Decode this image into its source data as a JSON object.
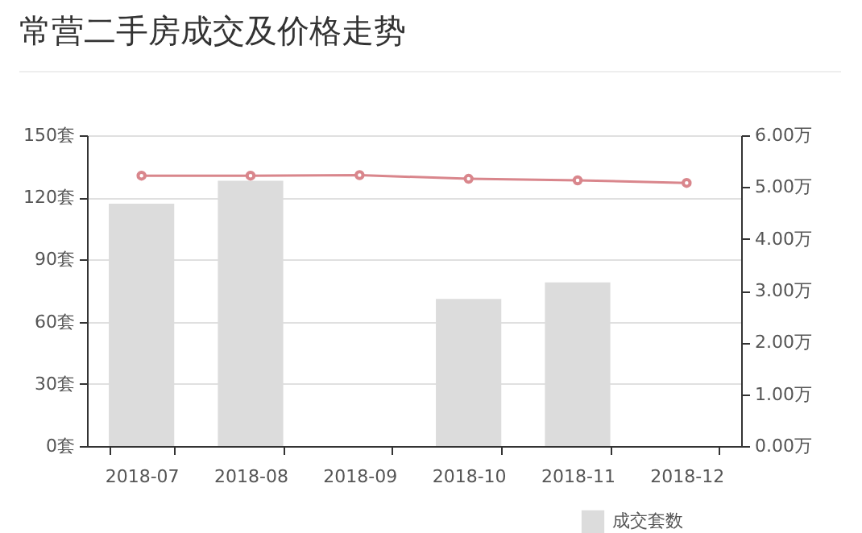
{
  "chart_data": {
    "type": "bar",
    "title": "常营二手房成交及价格走势",
    "categories": [
      "2018-07",
      "2018-08",
      "2018-09",
      "2018-10",
      "2018-11",
      "2018-12"
    ],
    "series": [
      {
        "name": "成交套数",
        "color": "#dcdcdc",
        "values": [
          117,
          128,
          0,
          71,
          79,
          0
        ]
      },
      {
        "type": "line",
        "axis": "y2",
        "color": "#d9868c",
        "marker": "circle",
        "values": [
          5.22,
          5.22,
          5.23,
          5.16,
          5.13,
          5.08
        ]
      }
    ],
    "ylim": [
      0,
      150
    ],
    "yticks": [
      {
        "value": 0,
        "label": "0套"
      },
      {
        "value": 30,
        "label": "30套"
      },
      {
        "value": 60,
        "label": "60套"
      },
      {
        "value": 90,
        "label": "90套"
      },
      {
        "value": 120,
        "label": "120套"
      },
      {
        "value": 150,
        "label": "150套"
      }
    ],
    "y2lim": [
      0,
      6
    ],
    "y2ticks": [
      {
        "value": 0,
        "label": "0.00万"
      },
      {
        "value": 1,
        "label": "1.00万"
      },
      {
        "value": 2,
        "label": "2.00万"
      },
      {
        "value": 3,
        "label": "3.00万"
      },
      {
        "value": 4,
        "label": "4.00万"
      },
      {
        "value": 5,
        "label": "5.00万"
      },
      {
        "value": 6,
        "label": "6.00万"
      }
    ],
    "grid": "y",
    "legend": "bottom right"
  }
}
